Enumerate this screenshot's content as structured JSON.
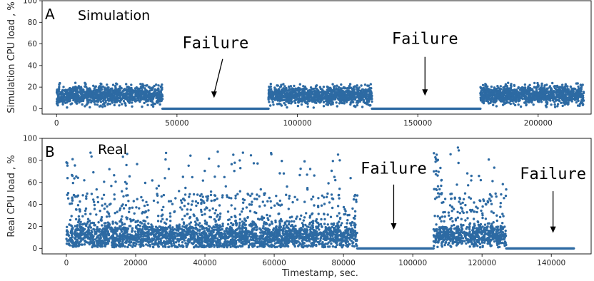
{
  "chart_data": [
    {
      "type": "scatter",
      "panel_letter": "A",
      "title": "Simulation",
      "ylabel": "Simulation CPU load , %",
      "xlabel": "",
      "xlim": [
        -6000,
        222000
      ],
      "ylim": [
        -5,
        100
      ],
      "xticks": [
        0,
        50000,
        100000,
        150000,
        200000
      ],
      "yticks": [
        0,
        20,
        40,
        60,
        80,
        100
      ],
      "color": "#2d6aa3",
      "segments": [
        {
          "kind": "active",
          "x_start": 0,
          "x_end": 44000,
          "mean": 13,
          "spread": 4.2,
          "max": 24
        },
        {
          "kind": "zero",
          "x_start": 44000,
          "x_end": 88000,
          "value": 0
        },
        {
          "kind": "active",
          "x_start": 88000,
          "x_end": 131000,
          "mean": 12.5,
          "spread": 4.2,
          "max": 23
        },
        {
          "kind": "zero",
          "x_start": 131000,
          "x_end": 176000,
          "value": 0
        },
        {
          "kind": "active",
          "x_start": 176000,
          "x_end": 219000,
          "mean": 13,
          "spread": 4.2,
          "max": 24
        }
      ],
      "annotations": [
        {
          "text": "Failure",
          "x": 66000,
          "y_text": 56,
          "arrow_from": 46,
          "arrow_to": 10
        },
        {
          "text": "Failure",
          "x": 153000,
          "y_text": 60,
          "arrow_from": 48,
          "arrow_to": 12
        }
      ]
    },
    {
      "type": "scatter",
      "panel_letter": "B",
      "title": "Real",
      "ylabel": "Real CPU load , %",
      "xlabel": "Timestamp, sec.",
      "xlim": [
        -7000,
        151500
      ],
      "ylim": [
        -5,
        100
      ],
      "xticks": [
        0,
        20000,
        40000,
        60000,
        80000,
        100000,
        120000,
        140000
      ],
      "yticks": [
        0,
        20,
        40,
        60,
        80,
        100
      ],
      "color": "#2d6aa3",
      "segments": [
        {
          "kind": "active",
          "x_start": 0,
          "x_end": 84000,
          "mean": 11,
          "spread": 6,
          "max": 88
        },
        {
          "kind": "zero",
          "x_start": 84000,
          "x_end": 106000,
          "value": 0
        },
        {
          "kind": "active",
          "x_start": 106000,
          "x_end": 127000,
          "mean": 11,
          "spread": 5,
          "max": 92
        },
        {
          "kind": "zero",
          "x_start": 127000,
          "x_end": 146500,
          "value": 0
        }
      ],
      "annotations": [
        {
          "text": "Failure",
          "x": 94500,
          "y_text": 68,
          "arrow_from": 58,
          "arrow_to": 17
        },
        {
          "text": "Failure",
          "x": 140500,
          "y_text": 63,
          "arrow_from": 52,
          "arrow_to": 14
        }
      ]
    }
  ]
}
